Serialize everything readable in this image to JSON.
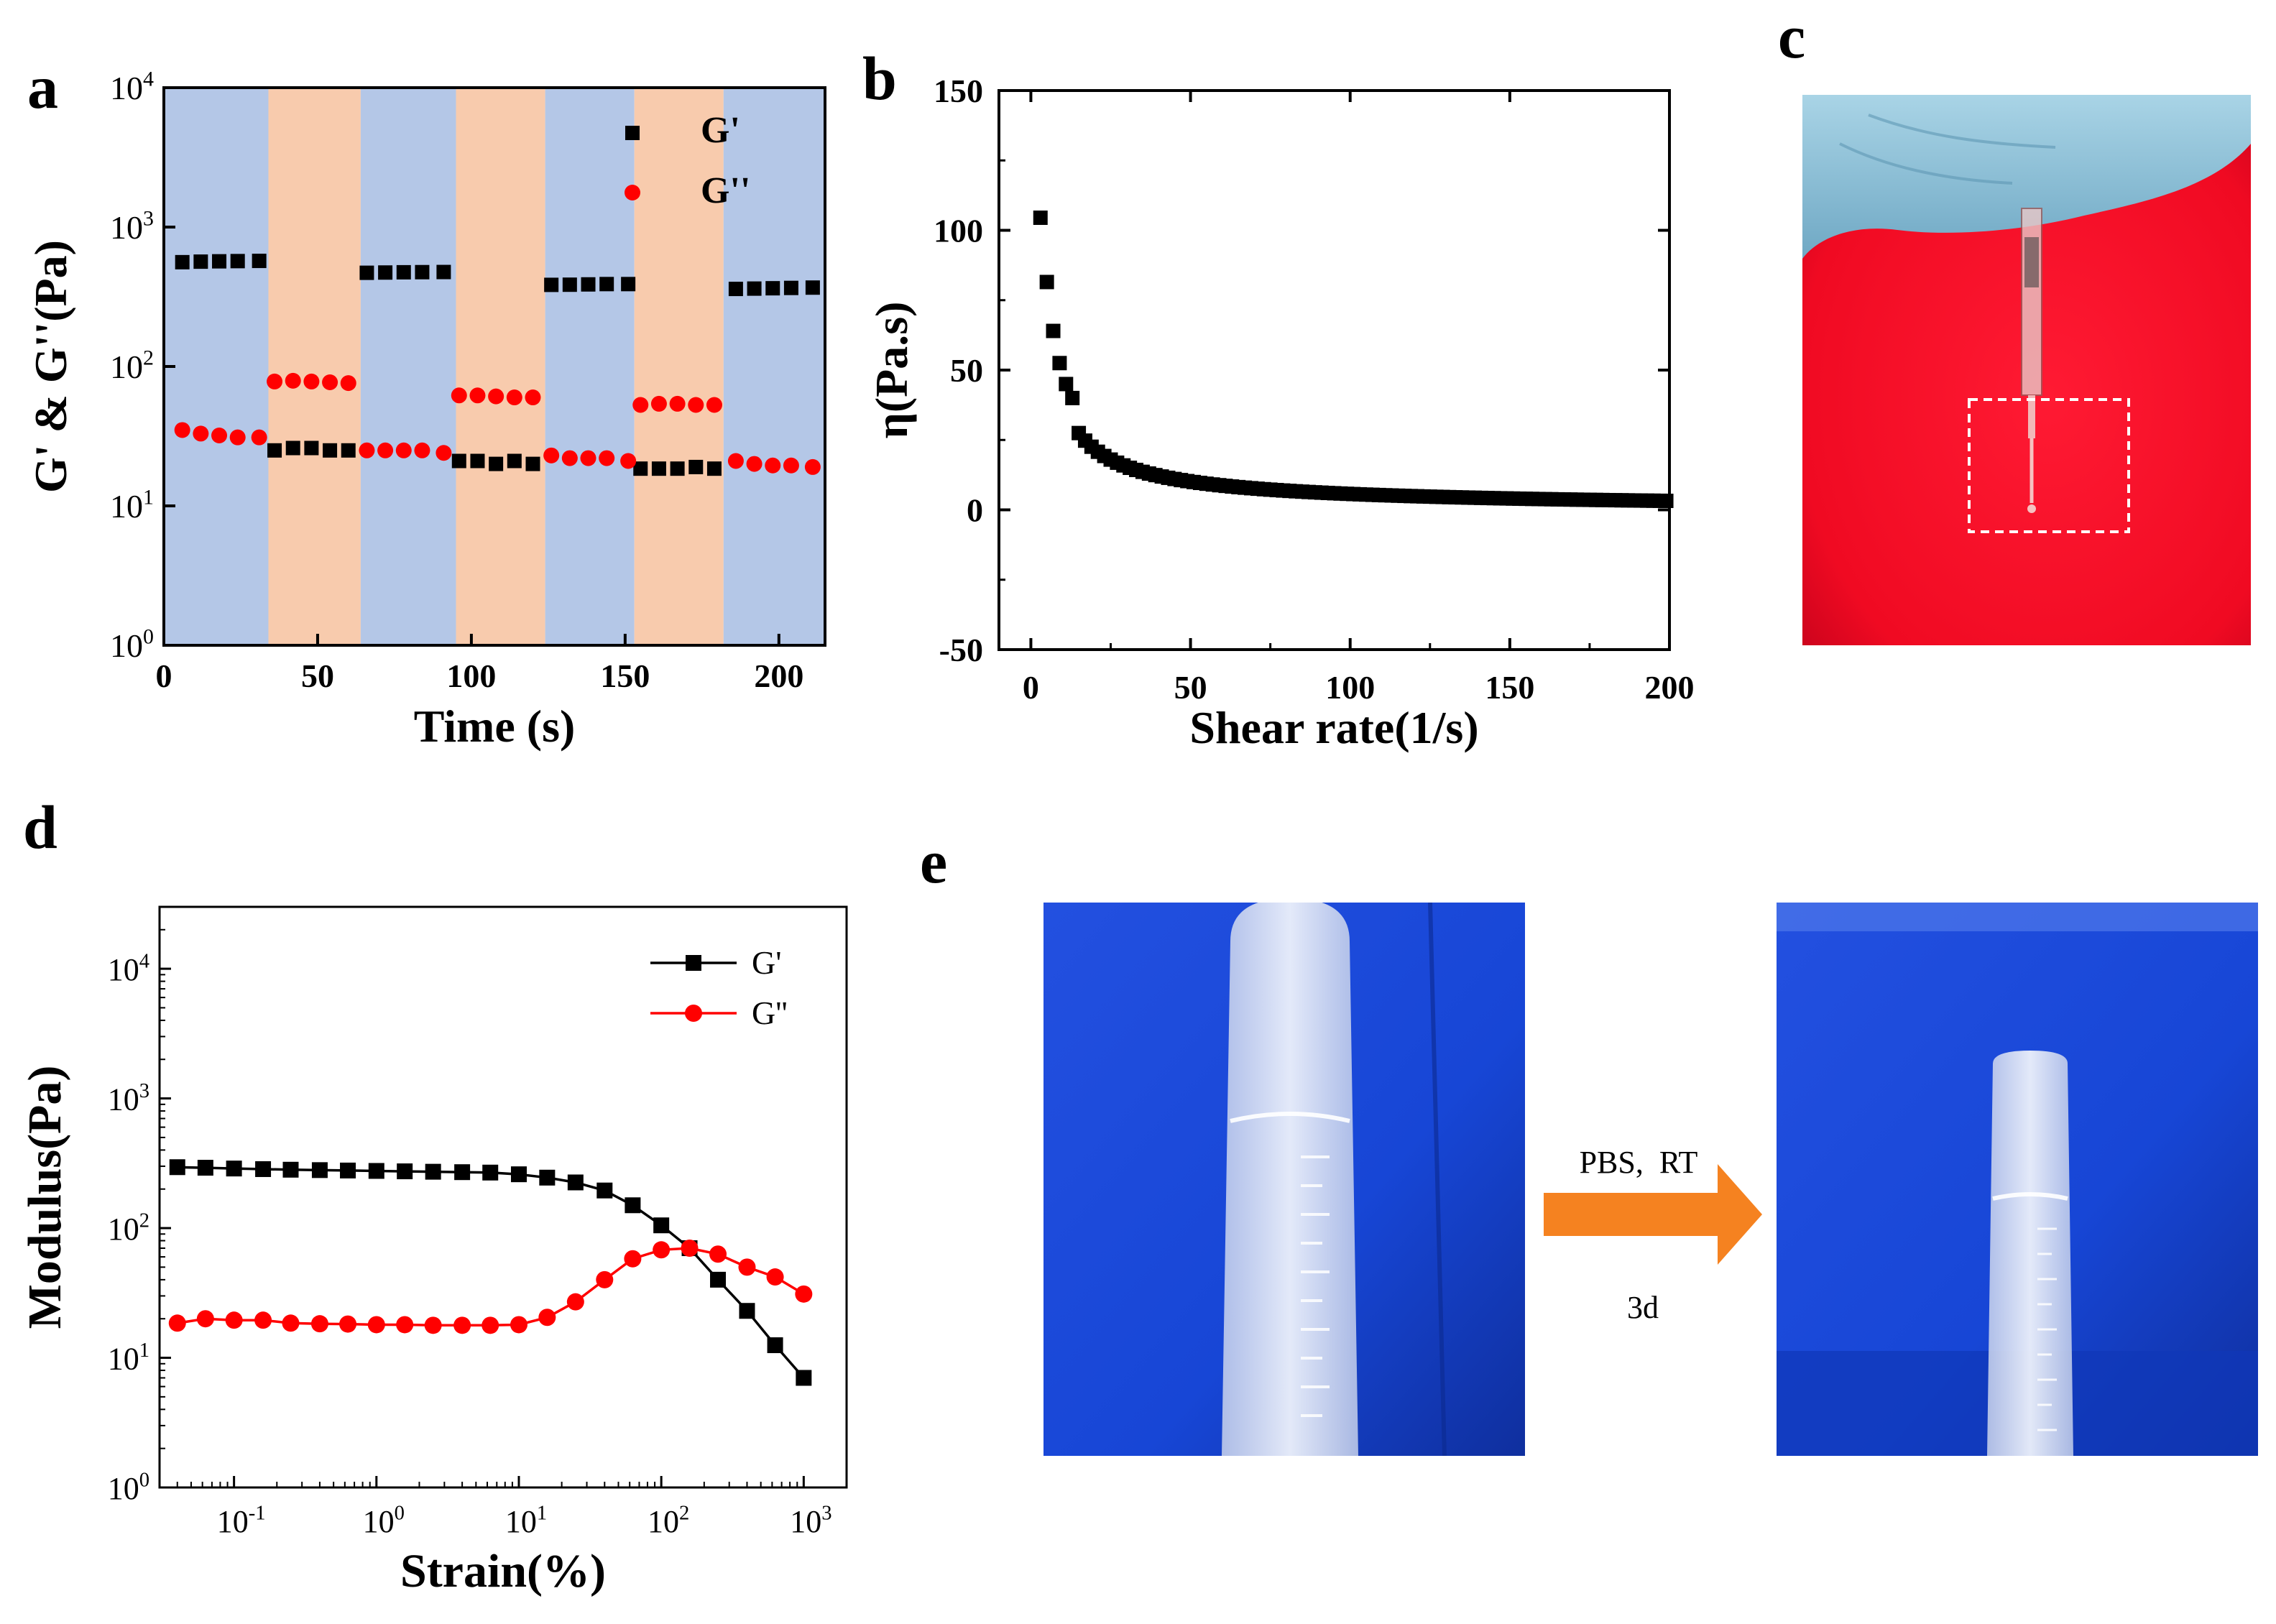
{
  "panel_labels": {
    "a": "a",
    "b": "b",
    "c": "c",
    "d": "d",
    "e": "e"
  },
  "panel_e": {
    "arrow_top_label": "PBS,  RT",
    "arrow_bottom_label": "3d"
  },
  "colors": {
    "black_series": "#000000",
    "red_series": "#ff0000",
    "blue_band": "#b4c7e7",
    "orange_band": "#f8cbad",
    "photo_red": "#f00a22",
    "photo_blue": "#1746d6",
    "glove_blue": "#8ec0d8",
    "arrow_orange": "#f58220"
  },
  "chart_data": [
    {
      "panel": "a",
      "type": "scatter",
      "xlabel": "Time (s)",
      "ylabel": "G' & G''(Pa)",
      "xlim": [
        0,
        215
      ],
      "ylim": [
        1,
        10000
      ],
      "yscale": "log",
      "xticks": [
        0,
        50,
        100,
        150,
        200
      ],
      "yticks": [
        {
          "value": 1,
          "base": "10",
          "exp": "0"
        },
        {
          "value": 10,
          "base": "10",
          "exp": "1"
        },
        {
          "value": 100,
          "base": "10",
          "exp": "2"
        },
        {
          "value": 1000,
          "base": "10",
          "exp": "3"
        },
        {
          "value": 10000,
          "base": "10",
          "exp": "4"
        }
      ],
      "bands": [
        {
          "from": 0,
          "to": 34,
          "kind": "blue"
        },
        {
          "from": 34,
          "to": 64,
          "kind": "orange"
        },
        {
          "from": 64,
          "to": 95,
          "kind": "blue"
        },
        {
          "from": 95,
          "to": 124,
          "kind": "orange"
        },
        {
          "from": 124,
          "to": 153,
          "kind": "blue"
        },
        {
          "from": 153,
          "to": 182,
          "kind": "orange"
        },
        {
          "from": 182,
          "to": 215,
          "kind": "blue"
        }
      ],
      "legend_position": "top-right",
      "series": [
        {
          "name": "G'",
          "marker": "square",
          "color": "#000000",
          "points": [
            [
              6,
              560
            ],
            [
              12,
              565
            ],
            [
              18,
              568
            ],
            [
              24,
              570
            ],
            [
              31,
              572
            ],
            [
              36,
              25
            ],
            [
              42,
              26
            ],
            [
              48,
              26
            ],
            [
              54,
              25
            ],
            [
              60,
              25
            ],
            [
              66,
              470
            ],
            [
              72,
              472
            ],
            [
              78,
              474
            ],
            [
              84,
              475
            ],
            [
              91,
              476
            ],
            [
              96,
              21
            ],
            [
              102,
              21
            ],
            [
              108,
              20
            ],
            [
              114,
              21
            ],
            [
              120,
              20
            ],
            [
              126,
              385
            ],
            [
              132,
              386
            ],
            [
              138,
              388
            ],
            [
              144,
              390
            ],
            [
              151,
              390
            ],
            [
              155,
              18.5
            ],
            [
              161,
              18.5
            ],
            [
              167,
              18.5
            ],
            [
              173,
              19
            ],
            [
              179,
              18.5
            ],
            [
              186,
              360
            ],
            [
              192,
              362
            ],
            [
              198,
              364
            ],
            [
              204,
              366
            ],
            [
              211,
              368
            ]
          ]
        },
        {
          "name": "G''",
          "marker": "circle",
          "color": "#ff0000",
          "points": [
            [
              6,
              35
            ],
            [
              12,
              33
            ],
            [
              18,
              32
            ],
            [
              24,
              31
            ],
            [
              31,
              31
            ],
            [
              36,
              78
            ],
            [
              42,
              79
            ],
            [
              48,
              78
            ],
            [
              54,
              77
            ],
            [
              60,
              76
            ],
            [
              66,
              25
            ],
            [
              72,
              25
            ],
            [
              78,
              25
            ],
            [
              84,
              25
            ],
            [
              91,
              24
            ],
            [
              96,
              62
            ],
            [
              102,
              62
            ],
            [
              108,
              61
            ],
            [
              114,
              60
            ],
            [
              120,
              60
            ],
            [
              126,
              23
            ],
            [
              132,
              22
            ],
            [
              138,
              22
            ],
            [
              144,
              22
            ],
            [
              151,
              21
            ],
            [
              155,
              53
            ],
            [
              161,
              54
            ],
            [
              167,
              54
            ],
            [
              173,
              53
            ],
            [
              179,
              53
            ],
            [
              186,
              21
            ],
            [
              192,
              20
            ],
            [
              198,
              19.5
            ],
            [
              204,
              19.5
            ],
            [
              211,
              19
            ]
          ]
        }
      ]
    },
    {
      "panel": "b",
      "type": "scatter",
      "xlabel": "Shear rate(1/s)",
      "ylabel": "η(Pa.s)",
      "xlim": [
        -10,
        200
      ],
      "ylim": [
        -50,
        150
      ],
      "xticks": [
        0,
        50,
        100,
        150,
        200
      ],
      "yticks": [
        -50,
        0,
        50,
        100,
        150
      ],
      "series": [
        {
          "name": "",
          "marker": "square",
          "color": "#000000",
          "model": "eta = 260 / shear_rate^0.83 (sampled every 2 1/s from 2.5 to 200)",
          "x_start": 2.5,
          "x_step": 2,
          "x_end": 200,
          "explicit_points": [
            [
              3,
              104.5
            ],
            [
              5,
              81.5
            ],
            [
              7,
              64
            ],
            [
              9,
              52.5
            ],
            [
              11,
              45
            ],
            [
              13,
              40
            ]
          ]
        }
      ]
    },
    {
      "panel": "d",
      "type": "line",
      "xlabel": "Strain(%)",
      "ylabel": "Modulus(Pa)",
      "xscale": "log",
      "yscale": "log",
      "xlim": [
        0.03,
        2000
      ],
      "ylim": [
        1,
        30000
      ],
      "xticks": [
        {
          "value": 0.1,
          "base": "10",
          "exp": "-1"
        },
        {
          "value": 1,
          "base": "10",
          "exp": "0"
        },
        {
          "value": 10,
          "base": "10",
          "exp": "1"
        },
        {
          "value": 100,
          "base": "10",
          "exp": "2"
        },
        {
          "value": 1000,
          "base": "10",
          "exp": "3"
        }
      ],
      "yticks": [
        {
          "value": 1,
          "base": "10",
          "exp": "0"
        },
        {
          "value": 10,
          "base": "10",
          "exp": "1"
        },
        {
          "value": 100,
          "base": "10",
          "exp": "2"
        },
        {
          "value": 1000,
          "base": "10",
          "exp": "3"
        },
        {
          "value": 10000,
          "base": "10",
          "exp": "4"
        }
      ],
      "legend_position": "top-right",
      "series": [
        {
          "name": "G'",
          "marker": "square",
          "color": "#000000",
          "points": [
            [
              0.04,
              295
            ],
            [
              0.063,
              292
            ],
            [
              0.1,
              288
            ],
            [
              0.16,
              285
            ],
            [
              0.25,
              282
            ],
            [
              0.4,
              280
            ],
            [
              0.63,
              278
            ],
            [
              1,
              276
            ],
            [
              1.58,
              274
            ],
            [
              2.5,
              272
            ],
            [
              4,
              270
            ],
            [
              6.3,
              268
            ],
            [
              10,
              260
            ],
            [
              15.8,
              245
            ],
            [
              25,
              225
            ],
            [
              40,
              195
            ],
            [
              63,
              150
            ],
            [
              100,
              105
            ],
            [
              158,
              70
            ],
            [
              250,
              40
            ],
            [
              400,
              23
            ],
            [
              630,
              12.5
            ],
            [
              1000,
              7
            ]
          ]
        },
        {
          "name": "G''",
          "marker": "circle",
          "color": "#ff0000",
          "points": [
            [
              0.04,
              18.5
            ],
            [
              0.063,
              20
            ],
            [
              0.1,
              19.5
            ],
            [
              0.16,
              19.5
            ],
            [
              0.25,
              18.5
            ],
            [
              0.4,
              18.3
            ],
            [
              0.63,
              18.2
            ],
            [
              1,
              18
            ],
            [
              1.58,
              18
            ],
            [
              2.5,
              17.8
            ],
            [
              4,
              17.8
            ],
            [
              6.3,
              17.8
            ],
            [
              10,
              18
            ],
            [
              15.8,
              20.5
            ],
            [
              25,
              27
            ],
            [
              40,
              40
            ],
            [
              63,
              58
            ],
            [
              100,
              68
            ],
            [
              158,
              70
            ],
            [
              250,
              63
            ],
            [
              400,
              50
            ],
            [
              630,
              42
            ],
            [
              1000,
              31
            ]
          ]
        }
      ]
    }
  ]
}
